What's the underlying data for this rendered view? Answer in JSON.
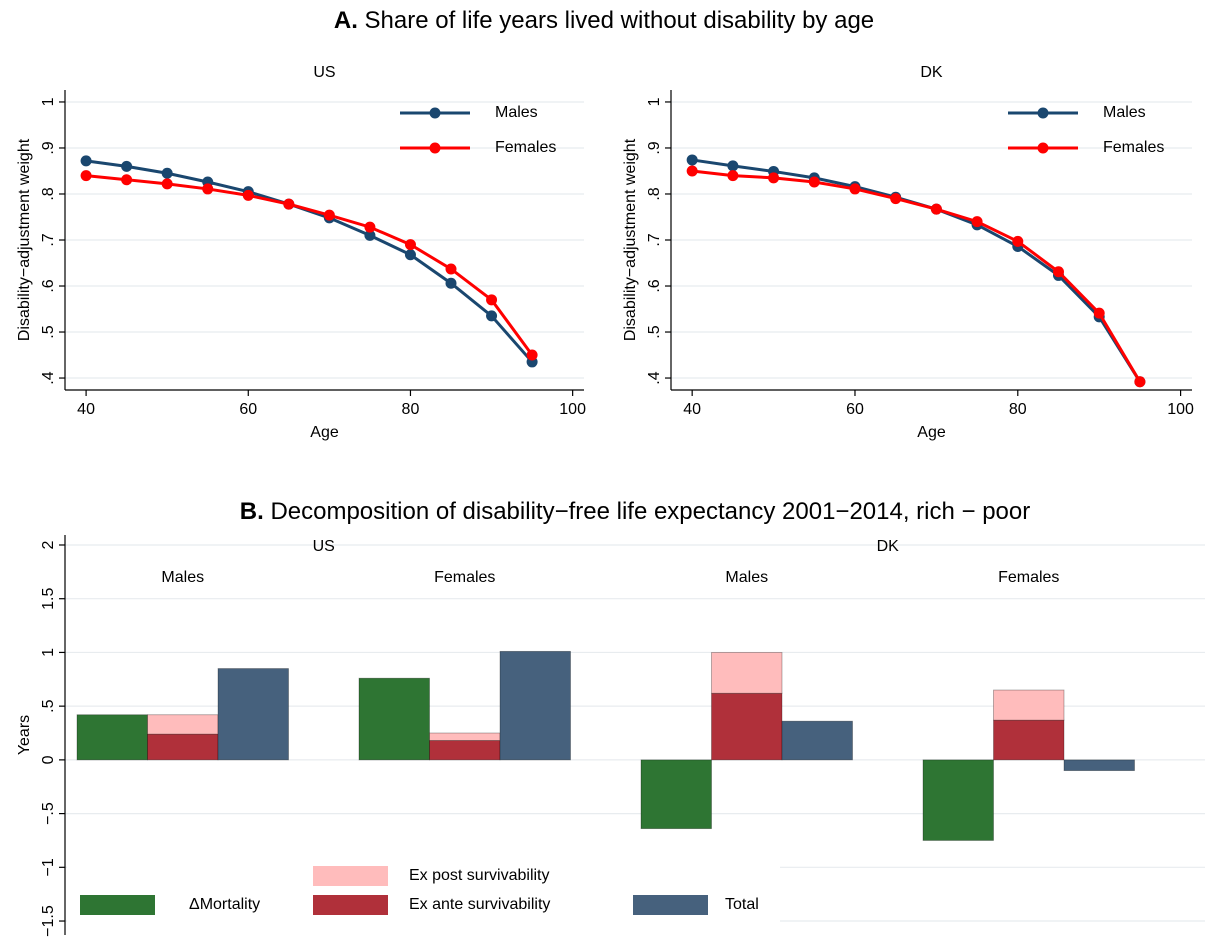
{
  "panel_a": {
    "label": "A.",
    "title": "Share of life years lived without disability by age"
  },
  "panel_b": {
    "label": "B.",
    "title": "Decomposition of disability−free life expectancy 2001−2014, rich − poor"
  },
  "chart_data": [
    {
      "type": "line",
      "title": "US",
      "x_label": "Age",
      "y_label": "Disability−adjustment weight",
      "x": [
        40,
        45,
        50,
        55,
        60,
        65,
        70,
        75,
        80,
        85,
        90,
        95
      ],
      "series": [
        {
          "name": "Males",
          "color": "#1a476f",
          "values": [
            0.872,
            0.86,
            0.845,
            0.826,
            0.805,
            0.778,
            0.748,
            0.71,
            0.668,
            0.606,
            0.535,
            0.435
          ]
        },
        {
          "name": "Females",
          "color": "#ff0000",
          "values": [
            0.84,
            0.831,
            0.822,
            0.811,
            0.797,
            0.778,
            0.754,
            0.728,
            0.69,
            0.637,
            0.57,
            0.45
          ]
        }
      ],
      "xlim": [
        37.4,
        101.4
      ],
      "xticks": [
        40,
        60,
        80,
        100
      ],
      "ylim": [
        0.374,
        1.026
      ],
      "yticks": [
        {
          "value": 0.4,
          "label": ".4"
        },
        {
          "value": 0.5,
          "label": ".5"
        },
        {
          "value": 0.6,
          "label": ".6"
        },
        {
          "value": 0.7,
          "label": ".7"
        },
        {
          "value": 0.8,
          "label": ".8"
        },
        {
          "value": 0.9,
          "label": ".9"
        },
        1
      ],
      "grid": true,
      "legend": "top-right"
    },
    {
      "type": "line",
      "title": "DK",
      "x_label": "Age",
      "y_label": "Disability−adjustment weight",
      "x": [
        40,
        45,
        50,
        55,
        60,
        65,
        70,
        75,
        80,
        85,
        90,
        95
      ],
      "series": [
        {
          "name": "Males",
          "color": "#1a476f",
          "values": [
            0.874,
            0.861,
            0.849,
            0.835,
            0.816,
            0.793,
            0.767,
            0.733,
            0.686,
            0.623,
            0.533,
            0.392
          ]
        },
        {
          "name": "Females",
          "color": "#ff0000",
          "values": [
            0.85,
            0.84,
            0.835,
            0.826,
            0.811,
            0.79,
            0.767,
            0.74,
            0.697,
            0.631,
            0.541,
            0.392
          ]
        }
      ],
      "xlim": [
        37.4,
        101.4
      ],
      "xticks": [
        40,
        60,
        80,
        100
      ],
      "ylim": [
        0.374,
        1.026
      ],
      "yticks": [
        {
          "value": 0.4,
          "label": ".4"
        },
        {
          "value": 0.5,
          "label": ".5"
        },
        {
          "value": 0.6,
          "label": ".6"
        },
        {
          "value": 0.7,
          "label": ".7"
        },
        {
          "value": 0.8,
          "label": ".8"
        },
        {
          "value": 0.9,
          "label": ".9"
        },
        1
      ],
      "grid": true,
      "legend": "top-right"
    },
    {
      "type": "bar",
      "y_label": "Years",
      "groups": [
        "US",
        "DK"
      ],
      "categories": [
        "Males",
        "Females",
        "Males",
        "Females"
      ],
      "series": [
        {
          "name": "ΔMortality",
          "color": "#2e7533",
          "values": [
            0.42,
            0.76,
            -0.64,
            -0.75
          ]
        },
        {
          "name": "Ex ante survivability",
          "color": "#b0303a",
          "values": [
            0.24,
            0.18,
            0.62,
            0.37
          ]
        },
        {
          "name": "Ex post survivability",
          "color": "#ffbcbc",
          "values": [
            0.18,
            0.07,
            0.38,
            0.28
          ],
          "stacked_on": 1
        },
        {
          "name": "Total",
          "color": "#46617d",
          "values": [
            0.85,
            1.01,
            0.36,
            -0.1
          ]
        }
      ],
      "ylim": [
        -1.63,
        2.093
      ],
      "yticks": [
        {
          "value": -1.5,
          "label": "−1.5"
        },
        {
          "value": -1,
          "label": "−1"
        },
        {
          "value": -0.5,
          "label": "−.5"
        },
        0,
        {
          "value": 0.5,
          "label": ".5"
        },
        1,
        1.5,
        2
      ],
      "grid": true,
      "legend": "bottom-left"
    }
  ]
}
